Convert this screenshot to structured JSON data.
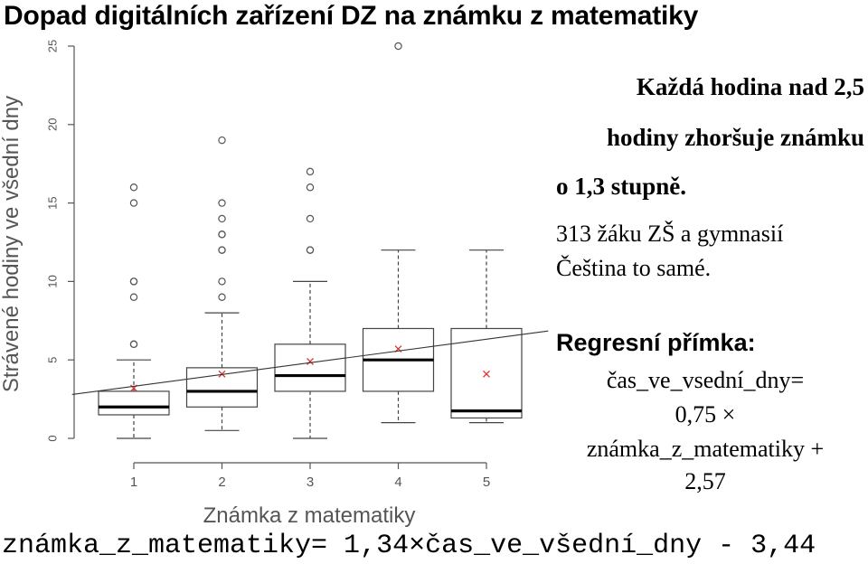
{
  "title": "Dopad digitálních zařízení DZ na známku z matematiky",
  "notes": {
    "bold_line_1": "Každá hodina nad 2,5",
    "bold_line_2": "hodiny zhoršuje známku",
    "bold_line_3": "o 1,3 stupně.",
    "sample": "313 žáku ZŠ a gymnasií",
    "language": "Čeština to samé."
  },
  "regression": {
    "label": "Regresní přímka:",
    "line_1": "čas_ve_vsední_dny=",
    "line_2": "0,75 ×",
    "line_3": "známka_z_matematiky +",
    "line_4": "2,57"
  },
  "bottom_formula": "známka_z_matematiky= 1,34×čas_ve_všední_dny - 3,44",
  "colors": {
    "mean_marker": "#e03030",
    "box_stroke": "#444444",
    "outlier": "#555555",
    "axis_text": "#555555"
  },
  "chart_data": {
    "type": "boxplot",
    "xlabel": "Známka z matematiky",
    "ylabel": "Strávené hodiny ve všední dny",
    "categories": [
      "1",
      "2",
      "3",
      "4",
      "5"
    ],
    "yticks": [
      "0",
      "5",
      "10",
      "15",
      "20",
      "25"
    ],
    "ylim": [
      0,
      25
    ],
    "boxes": [
      {
        "category": "1",
        "whisker_low": 0,
        "q1": 1.5,
        "median": 2,
        "q3": 3,
        "whisker_high": 5,
        "mean": 3.2,
        "outliers": [
          6,
          6,
          9,
          10,
          10,
          15,
          16
        ]
      },
      {
        "category": "2",
        "whisker_low": 0.5,
        "q1": 2,
        "median": 3,
        "q3": 4.5,
        "whisker_high": 8,
        "mean": 4.1,
        "outliers": [
          9,
          10,
          12,
          12,
          13,
          13,
          14,
          15,
          19
        ]
      },
      {
        "category": "3",
        "whisker_low": 0,
        "q1": 3,
        "median": 4,
        "q3": 6,
        "whisker_high": 10,
        "mean": 4.9,
        "outliers": [
          12,
          12,
          14,
          16,
          17
        ]
      },
      {
        "category": "4",
        "whisker_low": 1,
        "q1": 3,
        "median": 5,
        "q3": 7,
        "whisker_high": 12,
        "mean": 5.7,
        "outliers": [
          25
        ]
      },
      {
        "category": "5",
        "whisker_low": 1,
        "q1": 1.3,
        "median": 1.75,
        "q3": 7,
        "whisker_high": 12,
        "mean": 4.1,
        "outliers": []
      }
    ],
    "regression_line": {
      "slope": 0.75,
      "intercept": 2.57,
      "x_range": [
        0.3,
        5.7
      ]
    }
  }
}
